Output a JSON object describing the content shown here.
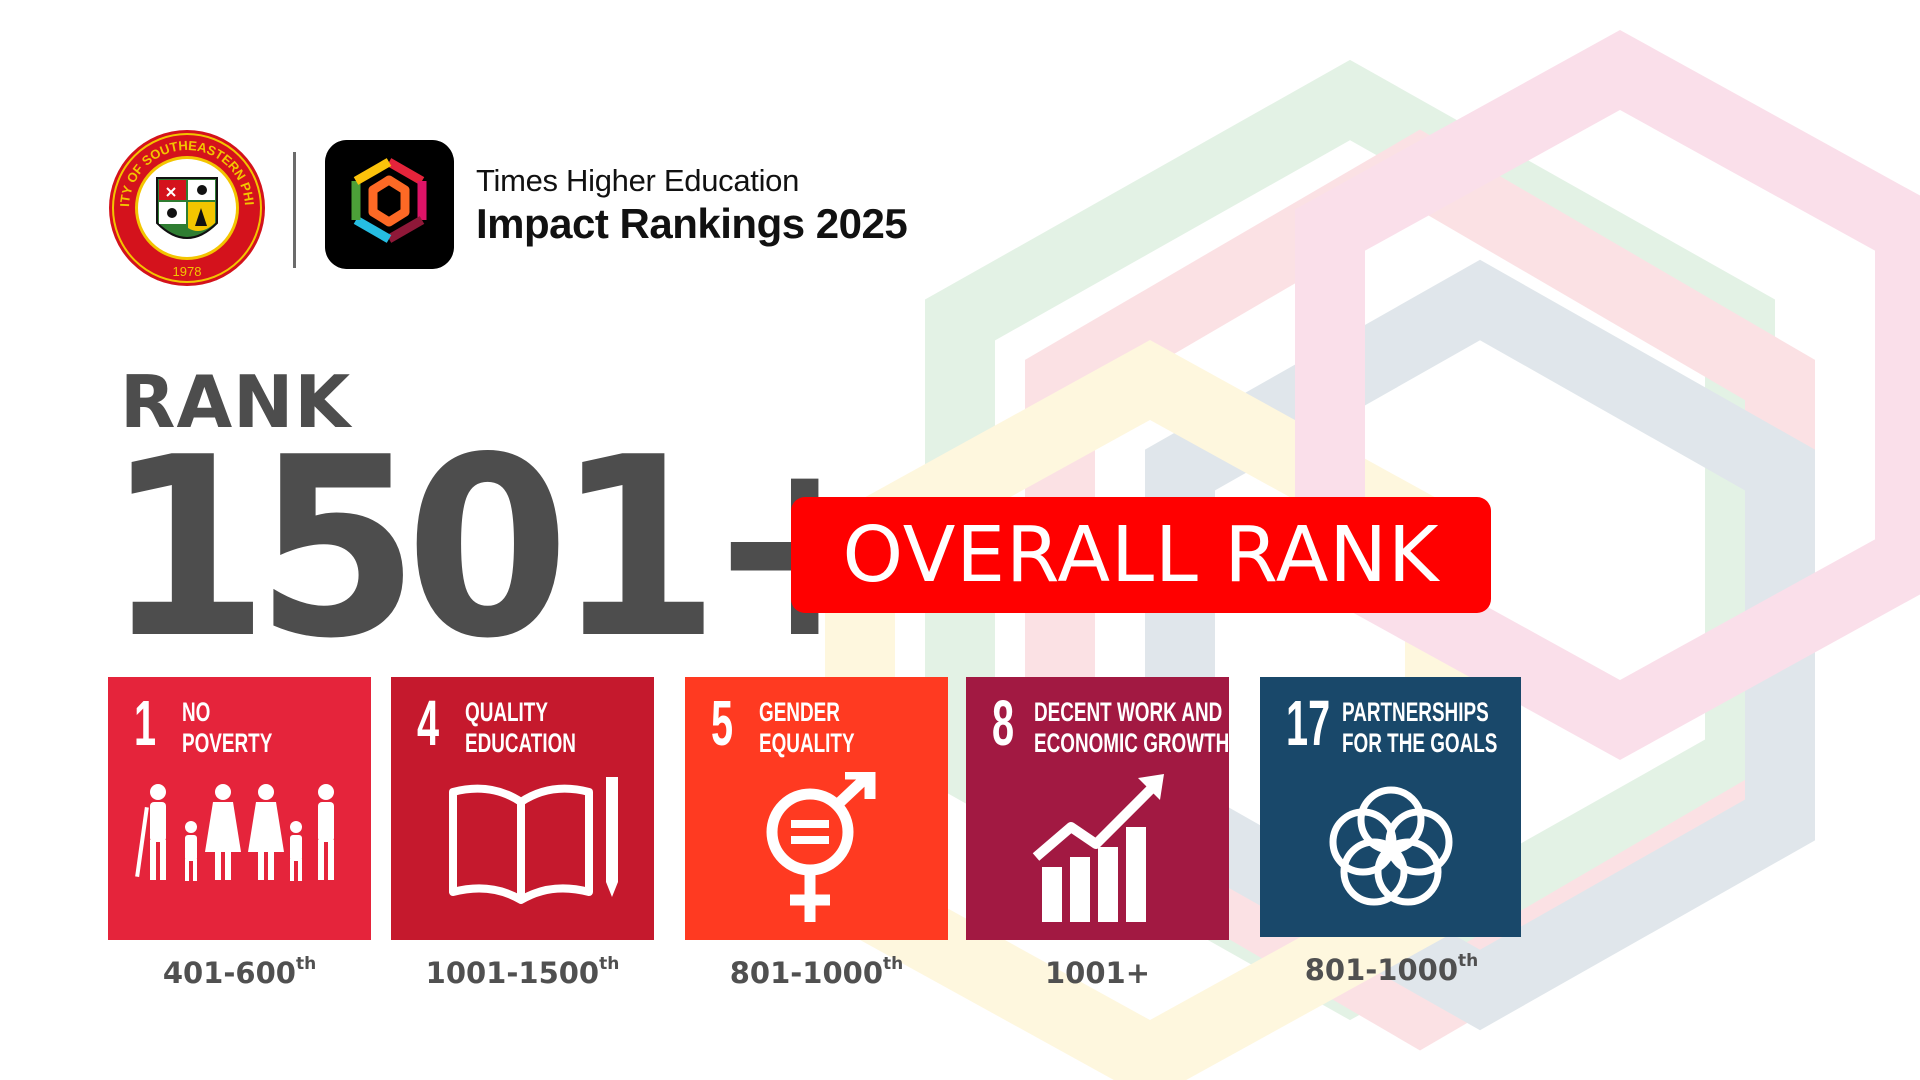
{
  "header": {
    "university_seal": {
      "text": "UNIVERSITY OF SOUTHEASTERN PHILIPPINES",
      "year": "1978"
    },
    "the_line1": "Times Higher Education",
    "the_line2": "Impact Rankings 2025"
  },
  "rank": {
    "label": "RANK",
    "value": "1501+",
    "badge": "OVERALL RANK"
  },
  "sdgs": [
    {
      "number": "1",
      "title_line1": "NO",
      "title_line2": "POVERTY",
      "color": "#e5243b",
      "icon": "family-icon",
      "rank": "401-600",
      "suffix": "th"
    },
    {
      "number": "4",
      "title_line1": "QUALITY",
      "title_line2": "EDUCATION",
      "color": "#c5192d",
      "icon": "book-pencil-icon",
      "rank": "1001-1500",
      "suffix": "th"
    },
    {
      "number": "5",
      "title_line1": "GENDER",
      "title_line2": "EQUALITY",
      "color": "#ff3a21",
      "icon": "gender-equality-icon",
      "rank": "801-1000",
      "suffix": "th"
    },
    {
      "number": "8",
      "title_line1": "DECENT WORK AND",
      "title_line2": "ECONOMIC GROWTH",
      "color": "#a21942",
      "icon": "growth-chart-icon",
      "rank": "1001+",
      "suffix": ""
    },
    {
      "number": "17",
      "title_line1": "PARTNERSHIPS",
      "title_line2": "FOR THE GOALS",
      "color": "#19486a",
      "icon": "partnership-rings-icon",
      "rank": "801-1000",
      "suffix": "th"
    }
  ]
}
